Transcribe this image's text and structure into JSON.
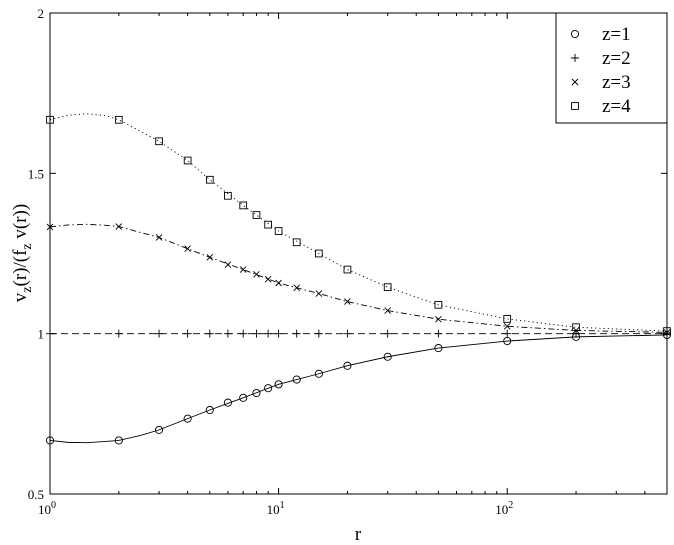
{
  "chart_data": {
    "type": "line",
    "xlabel": "r",
    "ylabel": "v_z(r)/(f_z v(r))",
    "x_scale": "log",
    "xlim": [
      1,
      500
    ],
    "ylim": [
      0.5,
      2
    ],
    "x_ticks": [
      {
        "value": 1,
        "base": "10",
        "exp": "0"
      },
      {
        "value": 10,
        "base": "10",
        "exp": "1"
      },
      {
        "value": 100,
        "base": "10",
        "exp": "2"
      }
    ],
    "y_ticks": [
      {
        "value": 0.5,
        "label": "0.5"
      },
      {
        "value": 1,
        "label": "1"
      },
      {
        "value": 1.5,
        "label": "1.5"
      },
      {
        "value": 2,
        "label": "2"
      }
    ],
    "legend": {
      "placement": "top-right"
    },
    "series": [
      {
        "name": "z=1",
        "marker": "circle",
        "line_style": "solid",
        "curve": [
          [
            1,
            0.667
          ],
          [
            1.2,
            0.661
          ],
          [
            1.45,
            0.66
          ],
          [
            1.75,
            0.664
          ],
          [
            2,
            0.667
          ],
          [
            2.5,
            0.683
          ],
          [
            3,
            0.7
          ],
          [
            4,
            0.735
          ],
          [
            5,
            0.762
          ],
          [
            7,
            0.8
          ],
          [
            10,
            0.842
          ],
          [
            15,
            0.875
          ],
          [
            20,
            0.9
          ],
          [
            30,
            0.928
          ],
          [
            50,
            0.955
          ],
          [
            100,
            0.977
          ],
          [
            200,
            0.99
          ],
          [
            500,
            0.996
          ]
        ],
        "markers": [
          [
            1,
            0.667
          ],
          [
            2,
            0.667
          ],
          [
            3,
            0.7
          ],
          [
            4,
            0.735
          ],
          [
            5,
            0.762
          ],
          [
            6,
            0.785
          ],
          [
            7,
            0.8
          ],
          [
            8,
            0.815
          ],
          [
            9,
            0.83
          ],
          [
            10,
            0.842
          ],
          [
            12,
            0.857
          ],
          [
            15,
            0.875
          ],
          [
            20,
            0.9
          ],
          [
            30,
            0.928
          ],
          [
            50,
            0.955
          ],
          [
            100,
            0.977
          ],
          [
            200,
            0.99
          ],
          [
            500,
            0.996
          ]
        ]
      },
      {
        "name": "z=2",
        "marker": "plus",
        "line_style": "dashed",
        "curve": [
          [
            1,
            1
          ],
          [
            500,
            1
          ]
        ],
        "markers": [
          [
            1,
            1
          ],
          [
            2,
            1
          ],
          [
            3,
            1
          ],
          [
            4,
            1
          ],
          [
            5,
            1
          ],
          [
            6,
            1
          ],
          [
            7,
            1
          ],
          [
            8,
            1
          ],
          [
            9,
            1
          ],
          [
            10,
            1
          ],
          [
            12,
            1
          ],
          [
            15,
            1
          ],
          [
            20,
            1
          ],
          [
            30,
            1
          ],
          [
            50,
            1
          ],
          [
            100,
            1
          ],
          [
            200,
            1
          ],
          [
            500,
            1
          ]
        ]
      },
      {
        "name": "z=3",
        "marker": "x",
        "line_style": "dashdot",
        "curve": [
          [
            1,
            1.333
          ],
          [
            1.2,
            1.339
          ],
          [
            1.45,
            1.341
          ],
          [
            1.75,
            1.338
          ],
          [
            2,
            1.334
          ],
          [
            3,
            1.3
          ],
          [
            4,
            1.265
          ],
          [
            5,
            1.238
          ],
          [
            7,
            1.2
          ],
          [
            10,
            1.158
          ],
          [
            15,
            1.125
          ],
          [
            20,
            1.1
          ],
          [
            30,
            1.072
          ],
          [
            50,
            1.045
          ],
          [
            100,
            1.023
          ],
          [
            200,
            1.01
          ],
          [
            500,
            1.004
          ]
        ],
        "markers": [
          [
            1,
            1.333
          ],
          [
            2,
            1.334
          ],
          [
            3,
            1.3
          ],
          [
            4,
            1.265
          ],
          [
            5,
            1.238
          ],
          [
            6,
            1.215
          ],
          [
            7,
            1.2
          ],
          [
            8,
            1.185
          ],
          [
            9,
            1.17
          ],
          [
            10,
            1.158
          ],
          [
            12,
            1.143
          ],
          [
            15,
            1.125
          ],
          [
            20,
            1.1
          ],
          [
            30,
            1.072
          ],
          [
            50,
            1.045
          ],
          [
            100,
            1.023
          ],
          [
            200,
            1.01
          ],
          [
            500,
            1.004
          ]
        ]
      },
      {
        "name": "z=4",
        "marker": "square",
        "line_style": "dotted",
        "curve": [
          [
            1,
            1.667
          ],
          [
            1.2,
            1.681
          ],
          [
            1.45,
            1.686
          ],
          [
            1.75,
            1.68
          ],
          [
            2,
            1.667
          ],
          [
            3,
            1.6
          ],
          [
            4,
            1.54
          ],
          [
            5,
            1.48
          ],
          [
            7,
            1.4
          ],
          [
            10,
            1.32
          ],
          [
            15,
            1.25
          ],
          [
            20,
            1.2
          ],
          [
            30,
            1.145
          ],
          [
            50,
            1.09
          ],
          [
            100,
            1.046
          ],
          [
            200,
            1.02
          ],
          [
            500,
            1.008
          ]
        ],
        "markers": [
          [
            1,
            1.667
          ],
          [
            2,
            1.667
          ],
          [
            3,
            1.6
          ],
          [
            4,
            1.54
          ],
          [
            5,
            1.48
          ],
          [
            6,
            1.43
          ],
          [
            7,
            1.4
          ],
          [
            8,
            1.37
          ],
          [
            9,
            1.34
          ],
          [
            10,
            1.32
          ],
          [
            12,
            1.285
          ],
          [
            15,
            1.25
          ],
          [
            20,
            1.2
          ],
          [
            30,
            1.145
          ],
          [
            50,
            1.09
          ],
          [
            100,
            1.046
          ],
          [
            200,
            1.02
          ],
          [
            500,
            1.008
          ]
        ]
      }
    ]
  }
}
